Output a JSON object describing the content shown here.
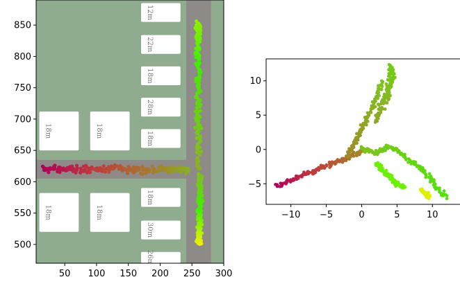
{
  "chart_data": [
    {
      "type": "scatter",
      "title": "",
      "xlabel": "",
      "ylabel": "",
      "xlim": [
        5,
        300
      ],
      "ylim": [
        470,
        890
      ],
      "xticks": [
        50,
        100,
        150,
        200,
        250,
        300
      ],
      "yticks": [
        500,
        550,
        600,
        650,
        700,
        750,
        800,
        850
      ],
      "background": {
        "ground_color": "#8fac8f",
        "road_color": "#8e8a88",
        "building_color": "#ffffff",
        "horizontal_road": {
          "x": [
            5,
            270
          ],
          "y": [
            605,
            635
          ]
        },
        "vertical_road": {
          "x": [
            241,
            280
          ],
          "y": [
            470,
            890
          ]
        },
        "buildings": [
          {
            "x": [
              10,
              72
            ],
            "y": [
              650,
              712
            ],
            "label": "18m"
          },
          {
            "x": [
              90,
              152
            ],
            "y": [
              650,
              712
            ],
            "label": "18m"
          },
          {
            "x": [
              10,
              72
            ],
            "y": [
              520,
              582
            ],
            "label": "18m"
          },
          {
            "x": [
              90,
              152
            ],
            "y": [
              520,
              582
            ],
            "label": "18m"
          },
          {
            "x": [
              170,
              232
            ],
            "y": [
              855,
              885
            ],
            "label": "12m"
          },
          {
            "x": [
              170,
              232
            ],
            "y": [
              804,
              834
            ],
            "label": "22m"
          },
          {
            "x": [
              170,
              232
            ],
            "y": [
              754,
              784
            ],
            "label": "18m"
          },
          {
            "x": [
              170,
              232
            ],
            "y": [
              704,
              734
            ],
            "label": "28m"
          },
          {
            "x": [
              170,
              232
            ],
            "y": [
              654,
              684
            ],
            "label": "18m"
          },
          {
            "x": [
              170,
              232
            ],
            "y": [
              560,
              590
            ],
            "label": "18m"
          },
          {
            "x": [
              170,
              232
            ],
            "y": [
              508,
              538
            ],
            "label": "30m"
          },
          {
            "x": [
              170,
              232
            ],
            "y": [
              470,
              488
            ],
            "label": "26m"
          }
        ]
      },
      "colormap": [
        "#b0005a",
        "#c03c3a",
        "#a8782c",
        "#80c020",
        "#40f000",
        "#f0f000"
      ],
      "series": [
        {
          "x": [
            15,
            60,
            110,
            160,
            210,
            245
          ],
          "y": [
            620,
            620,
            620,
            620,
            620,
            620
          ]
        },
        {
          "x": [
            260,
            260,
            260,
            260,
            260,
            260
          ],
          "y": [
            620,
            680,
            740,
            800,
            850,
            840
          ]
        },
        {
          "x": [
            262,
            262,
            262,
            262,
            262
          ],
          "y": [
            610,
            580,
            550,
            520,
            500
          ]
        }
      ]
    },
    {
      "type": "scatter",
      "title": "",
      "xlabel": "",
      "ylabel": "",
      "xlim": [
        -13.5,
        14
      ],
      "ylim": [
        -8,
        13.2
      ],
      "xticks": [
        -10,
        -5,
        0,
        5,
        10
      ],
      "yticks": [
        -5,
        0,
        5,
        10
      ],
      "series": [
        {
          "x": [
            -12,
            -10,
            -8,
            -6,
            -4,
            -2,
            0
          ],
          "y": [
            -5.3,
            -4.5,
            -3.7,
            -2.8,
            -2.0,
            -1.2,
            -0.3
          ]
        },
        {
          "x": [
            -2,
            -1,
            0,
            1,
            2,
            3
          ],
          "y": [
            -1,
            1,
            3,
            5,
            7.5,
            10
          ]
        },
        {
          "x": [
            2,
            3,
            4,
            4.5,
            4,
            3.5
          ],
          "y": [
            4,
            7,
            9,
            11,
            12.2,
            6
          ]
        },
        {
          "x": [
            0,
            2,
            4,
            6,
            8,
            10,
            12
          ],
          "y": [
            0,
            -0.5,
            0.5,
            -1,
            -2.5,
            -4.5,
            -7
          ]
        },
        {
          "x": [
            2,
            3,
            4,
            5,
            6
          ],
          "y": [
            -2,
            -3,
            -4,
            -5,
            -5.5
          ]
        },
        {
          "x": [
            8.5,
            9,
            9.5
          ],
          "y": [
            -6,
            -6.5,
            -7
          ]
        }
      ]
    }
  ]
}
